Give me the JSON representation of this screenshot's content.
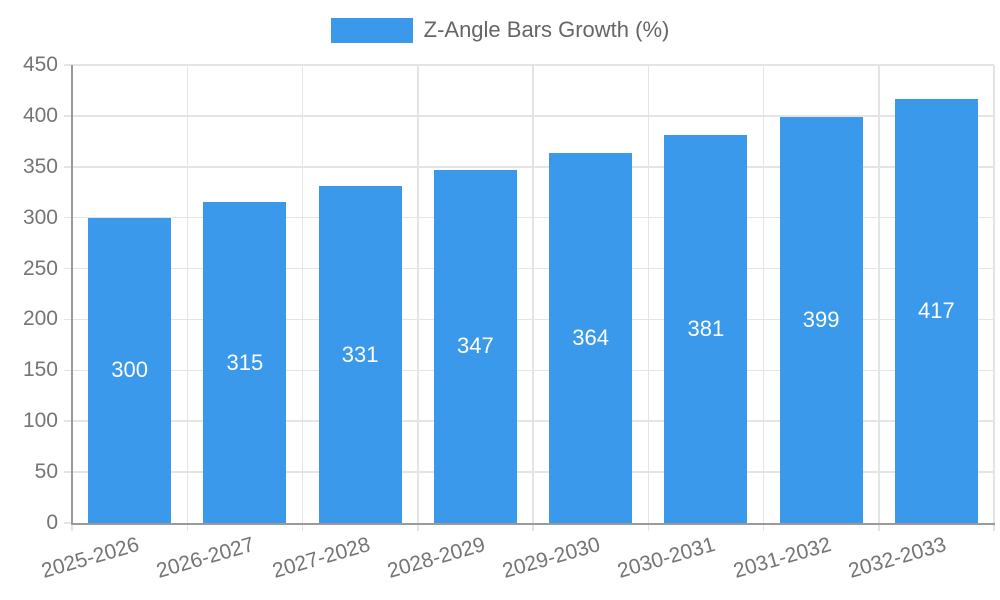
{
  "chart_data": {
    "type": "bar",
    "title": "",
    "legend": "Z-Angle Bars Growth (%)",
    "legend_position": "top-center",
    "categories": [
      "2025-2026",
      "2026-2027",
      "2027-2028",
      "2028-2029",
      "2029-2030",
      "2030-2031",
      "2031-2032",
      "2032-2033"
    ],
    "values": [
      300,
      315,
      331,
      347,
      364,
      381,
      399,
      417
    ],
    "value_label_position": "center-inside",
    "xlabel": "",
    "ylabel": "",
    "ylim": [
      0,
      450
    ],
    "yticks": [
      0,
      50,
      100,
      150,
      200,
      250,
      300,
      350,
      400,
      450
    ],
    "grid": true,
    "x_tick_rotation_deg": -16,
    "colors": {
      "bar": "#3B99EC",
      "grid": "#e4e4e4",
      "axis": "#9a9a9a",
      "tick_text": "#757575",
      "legend_text": "#666666",
      "value_label_text": "#ffffff",
      "background": "#ffffff"
    }
  }
}
